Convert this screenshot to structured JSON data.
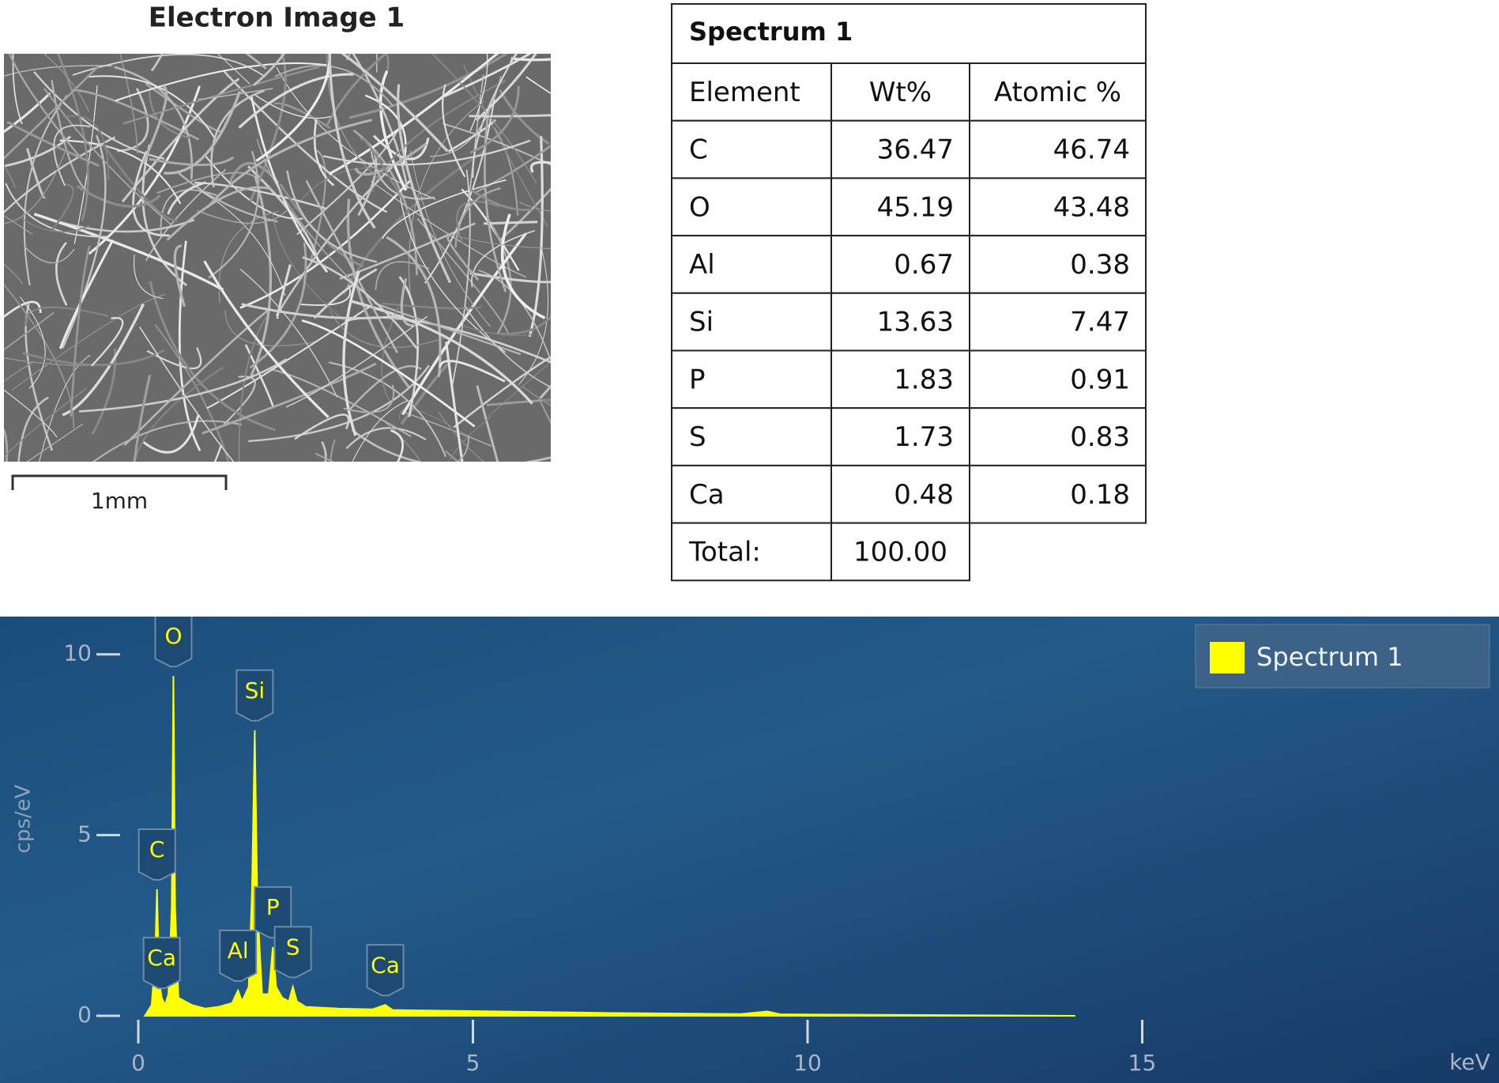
{
  "image": {
    "title": "Electron Image 1",
    "scale_label": "1mm"
  },
  "table": {
    "title": "Spectrum 1",
    "header": [
      "Element",
      "Wt%",
      "Atomic %"
    ],
    "rows": [
      [
        "C",
        "36.47",
        "46.74"
      ],
      [
        "O",
        "45.19",
        "43.48"
      ],
      [
        "Al",
        "0.67",
        "0.38"
      ],
      [
        "Si",
        "13.63",
        "7.47"
      ],
      [
        "P",
        "1.83",
        "0.91"
      ],
      [
        "S",
        "1.73",
        "0.83"
      ],
      [
        "Ca",
        "0.48",
        "0.18"
      ]
    ],
    "total": [
      "Total:",
      "100.00"
    ]
  },
  "chart_data": {
    "type": "area",
    "xlabel": "keV",
    "ylabel": "cps/eV",
    "x": [
      0.1,
      0.2,
      0.25,
      0.28,
      0.31,
      0.35,
      0.4,
      0.45,
      0.5,
      0.525,
      0.55,
      0.6,
      0.7,
      0.8,
      1.0,
      1.2,
      1.4,
      1.49,
      1.55,
      1.65,
      1.7,
      1.74,
      1.78,
      1.85,
      1.95,
      2.01,
      2.06,
      2.15,
      2.25,
      2.31,
      2.37,
      2.5,
      3.0,
      3.5,
      3.69,
      3.8,
      5,
      7,
      9,
      9.4,
      9.6,
      12,
      14
    ],
    "series": [
      {
        "name": "Spectrum 1",
        "color": "#ffff00",
        "values": [
          0.0,
          0.3,
          1.5,
          3.5,
          1.0,
          0.5,
          0.3,
          0.6,
          3.0,
          9.4,
          3.0,
          0.5,
          0.4,
          0.3,
          0.2,
          0.25,
          0.35,
          0.7,
          0.4,
          0.8,
          3.5,
          7.9,
          3.0,
          0.6,
          0.6,
          1.9,
          0.8,
          0.5,
          0.4,
          0.8,
          0.4,
          0.25,
          0.2,
          0.18,
          0.3,
          0.16,
          0.13,
          0.08,
          0.05,
          0.12,
          0.04,
          0.02,
          0.0
        ]
      }
    ],
    "annotations": [
      {
        "text": "O",
        "x": 0.525
      },
      {
        "text": "Si",
        "x": 1.74
      },
      {
        "text": "C",
        "x": 0.28
      },
      {
        "text": "P",
        "x": 2.01
      },
      {
        "text": "Al",
        "x": 1.49
      },
      {
        "text": "S",
        "x": 2.31
      },
      {
        "text": "Ca",
        "x": 0.35
      },
      {
        "text": "Ca",
        "x": 3.69
      }
    ],
    "xlim": [
      0,
      20
    ],
    "ylim": [
      0,
      11
    ],
    "xticks": [
      0,
      5,
      10,
      15
    ],
    "yticks": [
      0,
      5,
      10
    ],
    "legend": "top-right"
  }
}
